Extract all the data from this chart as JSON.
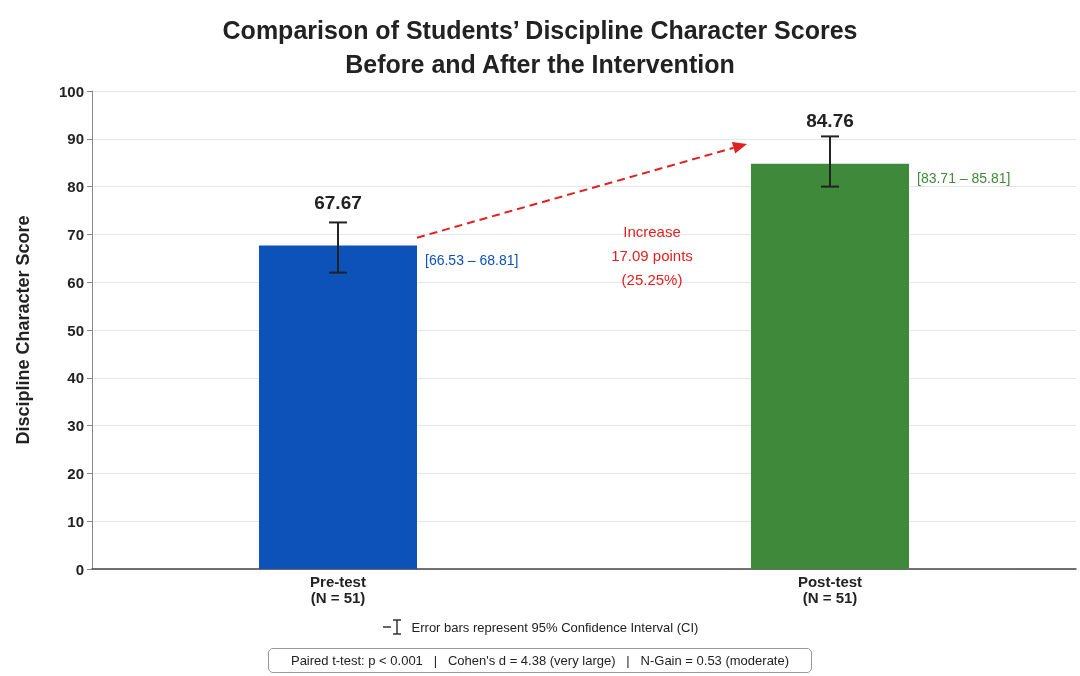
{
  "chart_data": {
    "type": "bar",
    "title": "Comparison of Students’ Discipline Character Scores\nBefore and After the Intervention",
    "ylabel": "Discipline Character Score",
    "categories": [
      "Pre-test\n(N = 51)",
      "Post-test\n(N = 51)"
    ],
    "values": [
      67.67,
      84.76
    ],
    "colors": [
      "#0d52b8",
      "#3f8a3a"
    ],
    "errors": [
      [
        62,
        72.5
      ],
      [
        80,
        90.5
      ]
    ],
    "ylim": [
      0,
      100
    ],
    "yticks": [
      0,
      10,
      20,
      30,
      40,
      50,
      60,
      70,
      80,
      90,
      100
    ],
    "grid": "y",
    "data_labels": true,
    "annotations": [
      "[66.53 – 68.81]",
      "[83.71 – 85.81]",
      "Increase\n17.09 points\n(25.25%)",
      "Error bars represent 95% Confidence Interval (CI)",
      "Paired t-test: p < 0.001   |   Cohen's d = 4.38 (very large)   |   N-Gain = 0.53 (moderate)"
    ]
  }
}
